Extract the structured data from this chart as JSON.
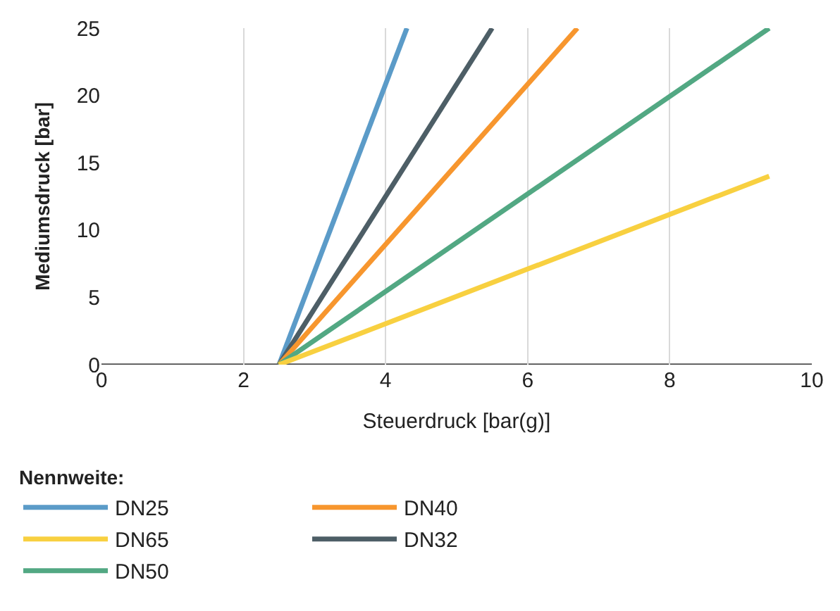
{
  "chart_data": {
    "type": "line",
    "xlabel": "Steuerdruck [bar(g)]",
    "ylabel": "Mediumsdruck [bar]",
    "legend_title": "Nennweite:",
    "xlim": [
      0,
      10
    ],
    "xticks": [
      0,
      2,
      4,
      6,
      8,
      10
    ],
    "ylim": [
      0,
      25
    ],
    "yticks": [
      0,
      5,
      10,
      15,
      20,
      25
    ],
    "grid": "x",
    "legend": "bottom",
    "marker": "none",
    "line_style": "solid",
    "series": [
      {
        "name": "DN25",
        "color": "#5b9bc8",
        "x": [
          2.5,
          4.3
        ],
        "values": [
          0,
          25
        ]
      },
      {
        "name": "DN32",
        "color": "#4d5e66",
        "x": [
          2.5,
          5.5
        ],
        "values": [
          0,
          25
        ]
      },
      {
        "name": "DN40",
        "color": "#f7962e",
        "x": [
          2.5,
          6.7
        ],
        "values": [
          0,
          25
        ]
      },
      {
        "name": "DN50",
        "color": "#52a883",
        "x": [
          2.5,
          9.4
        ],
        "values": [
          0,
          25
        ]
      },
      {
        "name": "DN65",
        "color": "#f8d040",
        "x": [
          2.5,
          9.4
        ],
        "values": [
          0,
          14
        ]
      }
    ]
  }
}
